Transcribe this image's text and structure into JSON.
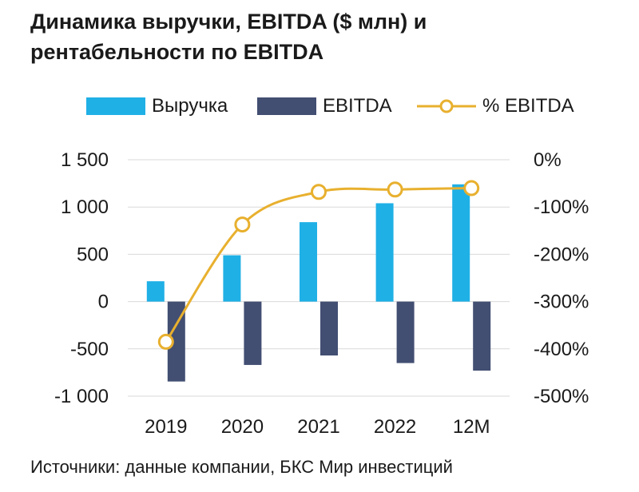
{
  "title": "Динамика выручки, EBITDA ($ млн) и рентабельности по EBITDA",
  "source": "Источники: данные компании, БКС Мир инвестиций",
  "colors": {
    "revenue": "#1fb0e6",
    "ebitda": "#424e72",
    "margin": "#e8b02e",
    "grid": "#d9d9d9"
  },
  "legend": [
    {
      "label": "Выручка",
      "kind": "bar",
      "color": "#1fb0e6",
      "icon": "bar-swatch"
    },
    {
      "label": "EBITDA",
      "kind": "bar",
      "color": "#424e72",
      "icon": "bar-swatch"
    },
    {
      "label": "% EBITDA",
      "kind": "line-marker",
      "color": "#e8b02e",
      "icon": "line-circle-swatch"
    }
  ],
  "chart_data": {
    "type": "bar",
    "categories": [
      "2019",
      "2020",
      "2021",
      "2022",
      "12M"
    ],
    "series": [
      {
        "name": "Выручка",
        "kind": "bar",
        "axis": "left",
        "values": [
          215,
          490,
          840,
          1040,
          1240
        ]
      },
      {
        "name": "EBITDA",
        "kind": "bar",
        "axis": "left",
        "values": [
          -845,
          -670,
          -570,
          -650,
          -730
        ]
      },
      {
        "name": "% EBITDA",
        "kind": "line",
        "axis": "right",
        "smooth": true,
        "markers": "circle",
        "values": [
          -385,
          -137,
          -68,
          -63,
          -60
        ]
      }
    ],
    "y_left": {
      "min": -1000,
      "max": 1500,
      "ticks": [
        1500,
        1000,
        500,
        0,
        -500,
        -1000
      ],
      "tick_labels": [
        "1 500",
        "1 000",
        "500",
        "0",
        "-500",
        "-1 000"
      ]
    },
    "y_right": {
      "min": -500,
      "max": 0,
      "ticks": [
        0,
        -100,
        -200,
        -300,
        -400,
        -500
      ],
      "tick_labels": [
        "0%",
        "-100%",
        "-200%",
        "-300%",
        "-400%",
        "-500%"
      ],
      "unit": "%"
    },
    "grid": true,
    "legend_position": "top"
  }
}
